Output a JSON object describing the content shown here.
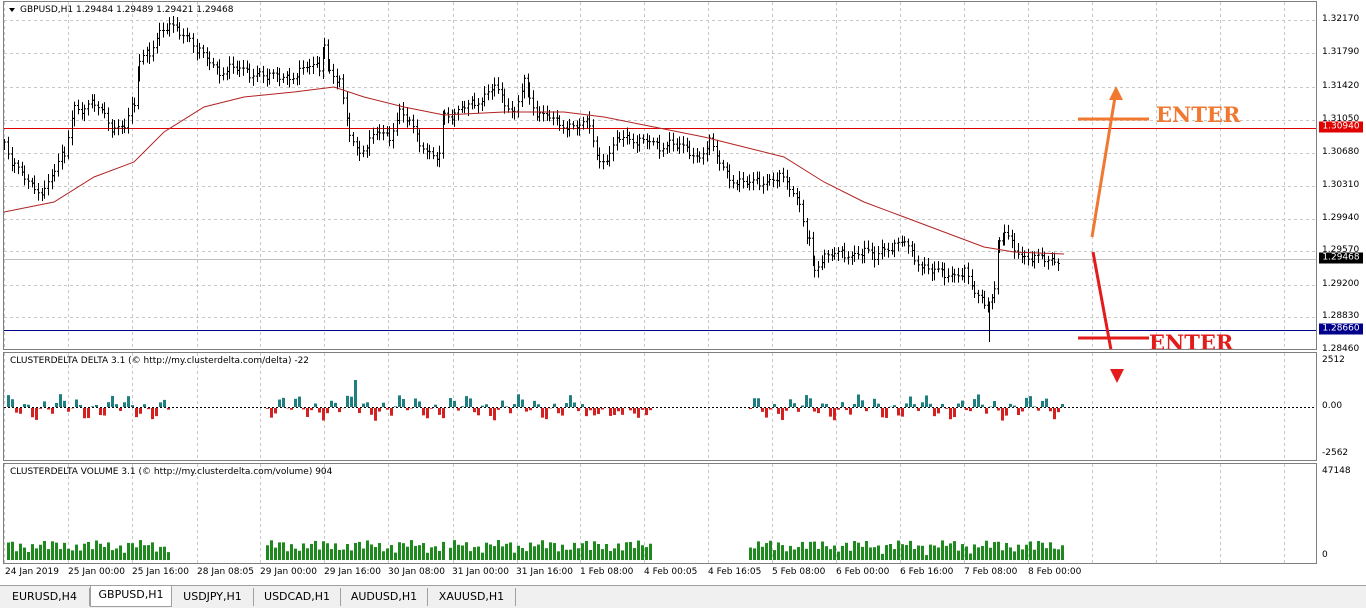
{
  "main_pane": {
    "symbol_title": "GBPUSD,H1  1.29484  1.29489  1.29421  1.29468",
    "price_ticks": [
      "1.32170",
      "1.31790",
      "1.31420",
      "1.31050",
      "1.30680",
      "1.30310",
      "1.29940",
      "1.29570",
      "1.29200",
      "1.28830",
      "1.28460"
    ],
    "current_price_tag": "1.29468",
    "level_red_tag": "1.30940",
    "level_blue_tag": "1.28660",
    "enter_up_label": "ENTER",
    "enter_down_label": "ENTER",
    "colors": {
      "level_red": "#e00000",
      "level_blue": "#00008b",
      "ma_line": "#b22222",
      "arrow_up": "#f07830",
      "arrow_down": "#e31b1b"
    }
  },
  "delta_pane": {
    "label": "CLUSTERDELTA DELTA 3.1 (© http://my.clusterdelta.com/delta) -22",
    "ticks": [
      "2512",
      "0.00",
      "-2562"
    ],
    "colors": {
      "positive": "#1f7f80",
      "negative": "#d42020"
    }
  },
  "volume_pane": {
    "label": "CLUSTERDELTA VOLUME 3.1 (© http://my.clusterdelta.com/volume) 904",
    "ticks": [
      "47148",
      "0"
    ],
    "colors": {
      "bar": "#1e8a1e"
    }
  },
  "time_axis": [
    "24 Jan 2019",
    "25 Jan 00:00",
    "25 Jan 16:00",
    "28 Jan 08:05",
    "29 Jan 00:00",
    "29 Jan 16:00",
    "30 Jan 08:00",
    "31 Jan 00:00",
    "31 Jan 16:00",
    "1 Feb 08:00",
    "4 Feb 00:05",
    "4 Feb 16:05",
    "5 Feb 08:00",
    "6 Feb 00:00",
    "6 Feb 16:00",
    "7 Feb 08:00",
    "8 Feb 00:00"
  ],
  "tabs": [
    "EURUSD,H4",
    "GBPUSD,H1",
    "USDJPY,H1",
    "USDCAD,H1",
    "AUDUSD,H1",
    "XAUUSD,H1"
  ],
  "active_tab": "GBPUSD,H1"
}
